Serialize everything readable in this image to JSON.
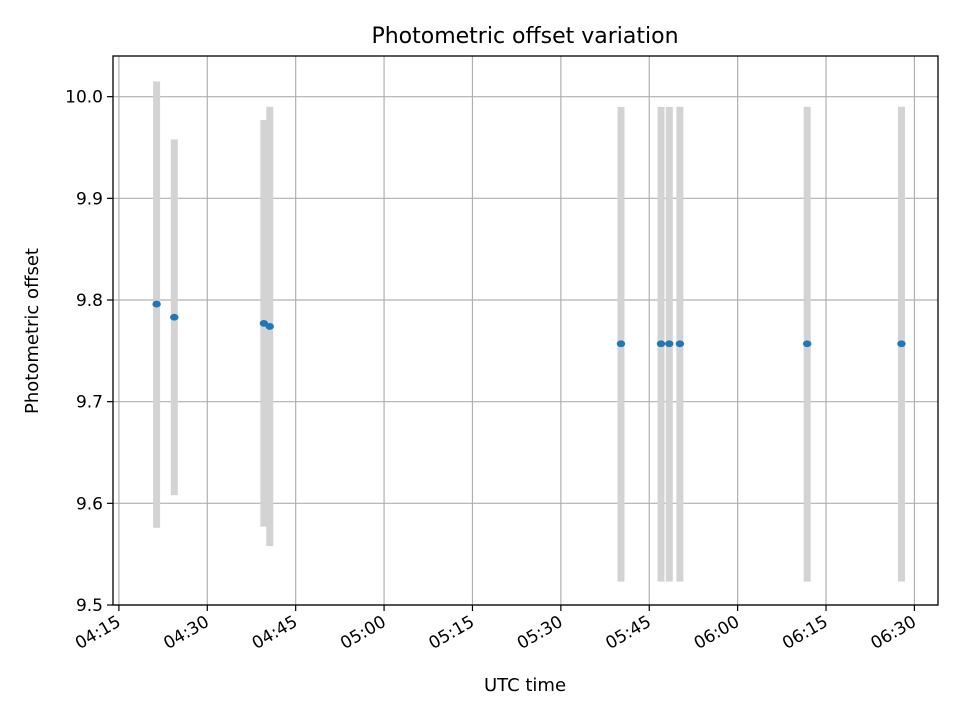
{
  "chart_data": {
    "type": "scatter",
    "title": "Photometric offset variation",
    "xlabel": "UTC time",
    "ylabel": "Photometric offset",
    "x_ticks": [
      "04:15",
      "04:30",
      "04:45",
      "05:00",
      "05:15",
      "05:30",
      "05:45",
      "06:00",
      "06:15",
      "06:30"
    ],
    "x_range": [
      "04:14",
      "06:34"
    ],
    "y_ticks": [
      "9.5",
      "9.6",
      "9.7",
      "9.8",
      "9.9",
      "10.0"
    ],
    "ylim": [
      9.5,
      10.04
    ],
    "grid": true,
    "points": [
      {
        "time": "04:21:24",
        "y": 9.796,
        "err_low": 9.576,
        "err_high": 10.015
      },
      {
        "time": "04:24:24",
        "y": 9.783,
        "err_low": 9.608,
        "err_high": 9.958
      },
      {
        "time": "04:39:36",
        "y": 9.777,
        "err_low": 9.577,
        "err_high": 9.977
      },
      {
        "time": "04:40:36",
        "y": 9.774,
        "err_low": 9.558,
        "err_high": 9.99
      },
      {
        "time": "05:40:12",
        "y": 9.757,
        "err_low": 9.523,
        "err_high": 9.99
      },
      {
        "time": "05:47:00",
        "y": 9.757,
        "err_low": 9.523,
        "err_high": 9.99
      },
      {
        "time": "05:48:24",
        "y": 9.757,
        "err_low": 9.523,
        "err_high": 9.99
      },
      {
        "time": "05:50:12",
        "y": 9.757,
        "err_low": 9.523,
        "err_high": 9.99
      },
      {
        "time": "06:11:48",
        "y": 9.757,
        "err_low": 9.523,
        "err_high": 9.99
      },
      {
        "time": "06:27:48",
        "y": 9.757,
        "err_low": 9.523,
        "err_high": 9.99
      }
    ],
    "colors": {
      "point": "#1f77b4",
      "errorbar": "#d3d3d3",
      "grid": "#b0b0b0",
      "axis": "#000000"
    }
  }
}
